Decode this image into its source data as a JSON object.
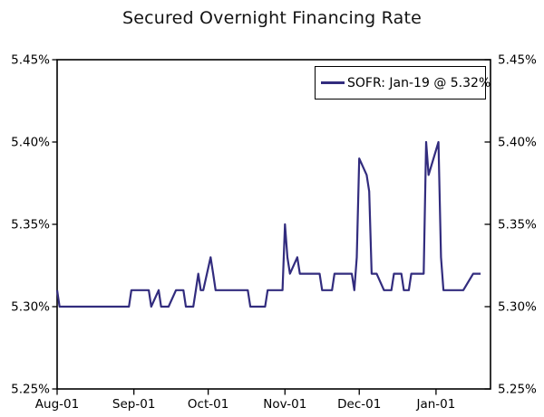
{
  "title": "Secured Overnight Financing Rate",
  "legend": {
    "label": "SOFR: Jan-19 @ 5.32%"
  },
  "chart_data": {
    "type": "line",
    "title": "Secured Overnight Financing Rate",
    "xlabel": "",
    "ylabel": "",
    "ylim": [
      5.25,
      5.45
    ],
    "y_ticks": [
      5.45,
      5.4,
      5.35,
      5.3,
      5.25
    ],
    "y_tick_labels": [
      "5.45%",
      "5.40%",
      "5.35%",
      "5.30%",
      "5.25%"
    ],
    "y_axis_sides": "both",
    "x_domain": [
      "2023-08-01",
      "2024-01-23"
    ],
    "x_tick_dates": [
      "2023-08-01",
      "2023-09-01",
      "2023-10-01",
      "2023-11-01",
      "2023-12-01",
      "2024-01-01"
    ],
    "x_tick_labels": [
      "Aug-01",
      "Sep-01",
      "Oct-01",
      "Nov-01",
      "Dec-01",
      "Jan-01"
    ],
    "grid": false,
    "legend_position": "top-right",
    "series": [
      {
        "name": "SOFR: Jan-19 @ 5.32%",
        "color": "#322c7e",
        "last_point_label": "Jan-19 @ 5.32%",
        "points": [
          [
            "2023-08-01",
            5.31
          ],
          [
            "2023-08-02",
            5.3
          ],
          [
            "2023-08-03",
            5.3
          ],
          [
            "2023-08-04",
            5.3
          ],
          [
            "2023-08-07",
            5.3
          ],
          [
            "2023-08-08",
            5.3
          ],
          [
            "2023-08-09",
            5.3
          ],
          [
            "2023-08-10",
            5.3
          ],
          [
            "2023-08-11",
            5.3
          ],
          [
            "2023-08-14",
            5.3
          ],
          [
            "2023-08-15",
            5.3
          ],
          [
            "2023-08-16",
            5.3
          ],
          [
            "2023-08-17",
            5.3
          ],
          [
            "2023-08-18",
            5.3
          ],
          [
            "2023-08-21",
            5.3
          ],
          [
            "2023-08-22",
            5.3
          ],
          [
            "2023-08-23",
            5.3
          ],
          [
            "2023-08-24",
            5.3
          ],
          [
            "2023-08-25",
            5.3
          ],
          [
            "2023-08-28",
            5.3
          ],
          [
            "2023-08-29",
            5.3
          ],
          [
            "2023-08-30",
            5.3
          ],
          [
            "2023-08-31",
            5.31
          ],
          [
            "2023-09-01",
            5.31
          ],
          [
            "2023-09-05",
            5.31
          ],
          [
            "2023-09-06",
            5.31
          ],
          [
            "2023-09-07",
            5.31
          ],
          [
            "2023-09-08",
            5.3
          ],
          [
            "2023-09-11",
            5.31
          ],
          [
            "2023-09-12",
            5.3
          ],
          [
            "2023-09-13",
            5.3
          ],
          [
            "2023-09-14",
            5.3
          ],
          [
            "2023-09-15",
            5.3
          ],
          [
            "2023-09-18",
            5.31
          ],
          [
            "2023-09-19",
            5.31
          ],
          [
            "2023-09-20",
            5.31
          ],
          [
            "2023-09-21",
            5.31
          ],
          [
            "2023-09-22",
            5.3
          ],
          [
            "2023-09-25",
            5.3
          ],
          [
            "2023-09-26",
            5.31
          ],
          [
            "2023-09-27",
            5.32
          ],
          [
            "2023-09-28",
            5.31
          ],
          [
            "2023-09-29",
            5.31
          ],
          [
            "2023-10-02",
            5.33
          ],
          [
            "2023-10-03",
            5.32
          ],
          [
            "2023-10-04",
            5.31
          ],
          [
            "2023-10-05",
            5.31
          ],
          [
            "2023-10-06",
            5.31
          ],
          [
            "2023-10-10",
            5.31
          ],
          [
            "2023-10-11",
            5.31
          ],
          [
            "2023-10-12",
            5.31
          ],
          [
            "2023-10-13",
            5.31
          ],
          [
            "2023-10-16",
            5.31
          ],
          [
            "2023-10-17",
            5.31
          ],
          [
            "2023-10-18",
            5.3
          ],
          [
            "2023-10-19",
            5.3
          ],
          [
            "2023-10-20",
            5.3
          ],
          [
            "2023-10-23",
            5.3
          ],
          [
            "2023-10-24",
            5.3
          ],
          [
            "2023-10-25",
            5.31
          ],
          [
            "2023-10-26",
            5.31
          ],
          [
            "2023-10-27",
            5.31
          ],
          [
            "2023-10-30",
            5.31
          ],
          [
            "2023-10-31",
            5.31
          ],
          [
            "2023-11-01",
            5.35
          ],
          [
            "2023-11-02",
            5.33
          ],
          [
            "2023-11-03",
            5.32
          ],
          [
            "2023-11-06",
            5.33
          ],
          [
            "2023-11-07",
            5.32
          ],
          [
            "2023-11-08",
            5.32
          ],
          [
            "2023-11-09",
            5.32
          ],
          [
            "2023-11-10",
            5.32
          ],
          [
            "2023-11-13",
            5.32
          ],
          [
            "2023-11-14",
            5.32
          ],
          [
            "2023-11-15",
            5.32
          ],
          [
            "2023-11-16",
            5.31
          ],
          [
            "2023-11-17",
            5.31
          ],
          [
            "2023-11-20",
            5.31
          ],
          [
            "2023-11-21",
            5.32
          ],
          [
            "2023-11-22",
            5.32
          ],
          [
            "2023-11-24",
            5.32
          ],
          [
            "2023-11-27",
            5.32
          ],
          [
            "2023-11-28",
            5.32
          ],
          [
            "2023-11-29",
            5.31
          ],
          [
            "2023-11-30",
            5.33
          ],
          [
            "2023-12-01",
            5.39
          ],
          [
            "2023-12-04",
            5.38
          ],
          [
            "2023-12-05",
            5.37
          ],
          [
            "2023-12-06",
            5.32
          ],
          [
            "2023-12-07",
            5.32
          ],
          [
            "2023-12-08",
            5.32
          ],
          [
            "2023-12-11",
            5.31
          ],
          [
            "2023-12-12",
            5.31
          ],
          [
            "2023-12-13",
            5.31
          ],
          [
            "2023-12-14",
            5.31
          ],
          [
            "2023-12-15",
            5.32
          ],
          [
            "2023-12-18",
            5.32
          ],
          [
            "2023-12-19",
            5.31
          ],
          [
            "2023-12-20",
            5.31
          ],
          [
            "2023-12-21",
            5.31
          ],
          [
            "2023-12-22",
            5.32
          ],
          [
            "2023-12-26",
            5.32
          ],
          [
            "2023-12-27",
            5.32
          ],
          [
            "2023-12-28",
            5.4
          ],
          [
            "2023-12-29",
            5.38
          ],
          [
            "2024-01-02",
            5.4
          ],
          [
            "2024-01-03",
            5.33
          ],
          [
            "2024-01-04",
            5.31
          ],
          [
            "2024-01-05",
            5.31
          ],
          [
            "2024-01-08",
            5.31
          ],
          [
            "2024-01-09",
            5.31
          ],
          [
            "2024-01-10",
            5.31
          ],
          [
            "2024-01-11",
            5.31
          ],
          [
            "2024-01-12",
            5.31
          ],
          [
            "2024-01-16",
            5.32
          ],
          [
            "2024-01-17",
            5.32
          ],
          [
            "2024-01-18",
            5.32
          ],
          [
            "2024-01-19",
            5.32
          ]
        ]
      }
    ]
  }
}
